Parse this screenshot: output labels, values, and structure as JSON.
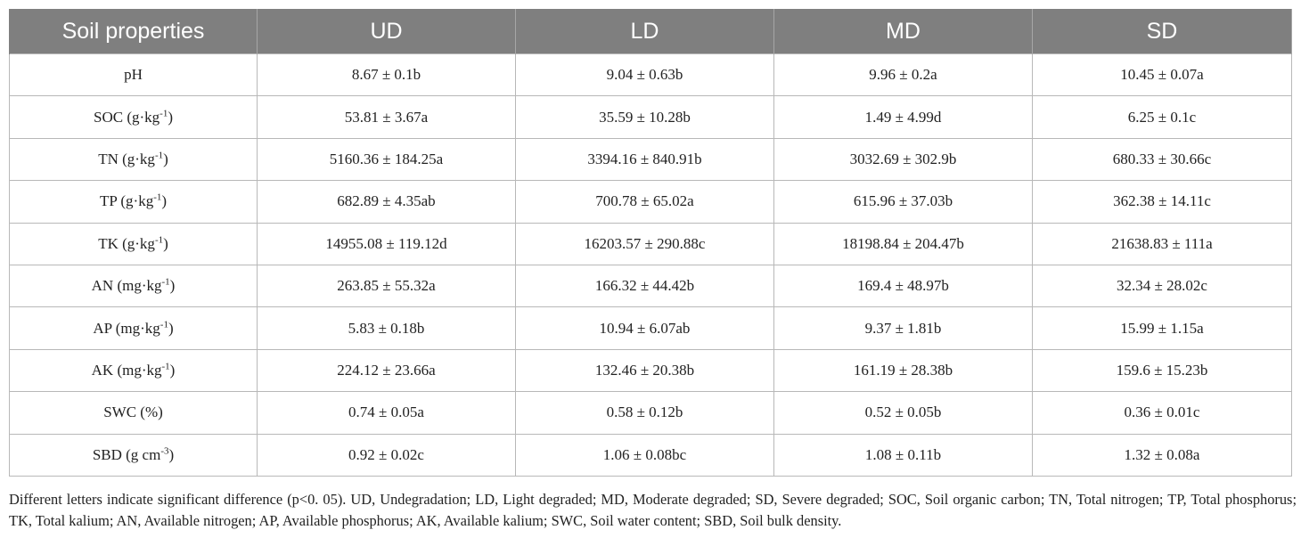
{
  "table": {
    "headers": [
      "Soil properties",
      "UD",
      "LD",
      "MD",
      "SD"
    ],
    "rows": [
      {
        "property": "pH",
        "unit_sup": "",
        "unit_close": "",
        "values": [
          "8.67 ± 0.1b",
          "9.04 ± 0.63b",
          "9.96 ± 0.2a",
          "10.45 ± 0.07a"
        ]
      },
      {
        "property": "SOC (g·kg",
        "unit_sup": "-1",
        "unit_close": ")",
        "values": [
          "53.81 ± 3.67a",
          "35.59 ± 10.28b",
          "1.49 ± 4.99d",
          "6.25 ± 0.1c"
        ]
      },
      {
        "property": "TN (g·kg",
        "unit_sup": "-1",
        "unit_close": ")",
        "values": [
          "5160.36 ± 184.25a",
          "3394.16 ± 840.91b",
          "3032.69 ± 302.9b",
          "680.33 ± 30.66c"
        ]
      },
      {
        "property": "TP (g·kg",
        "unit_sup": "-1",
        "unit_close": ")",
        "values": [
          "682.89 ± 4.35ab",
          "700.78 ± 65.02a",
          "615.96 ± 37.03b",
          "362.38 ± 14.11c"
        ]
      },
      {
        "property": "TK (g·kg",
        "unit_sup": "-1",
        "unit_close": ")",
        "values": [
          "14955.08 ± 119.12d",
          "16203.57 ± 290.88c",
          "18198.84 ± 204.47b",
          "21638.83 ± 111a"
        ]
      },
      {
        "property": "AN (mg·kg",
        "unit_sup": "-1",
        "unit_close": ")",
        "values": [
          "263.85 ± 55.32a",
          "166.32 ± 44.42b",
          "169.4 ± 48.97b",
          "32.34 ± 28.02c"
        ]
      },
      {
        "property": "AP (mg·kg",
        "unit_sup": "-1",
        "unit_close": ")",
        "values": [
          "5.83 ± 0.18b",
          "10.94 ± 6.07ab",
          "9.37 ± 1.81b",
          "15.99 ± 1.15a"
        ]
      },
      {
        "property": "AK (mg·kg",
        "unit_sup": "-1",
        "unit_close": ")",
        "values": [
          "224.12 ± 23.66a",
          "132.46 ± 20.38b",
          "161.19 ± 28.38b",
          "159.6 ± 15.23b"
        ]
      },
      {
        "property": "SWC (%)",
        "unit_sup": "",
        "unit_close": "",
        "values": [
          "0.74 ± 0.05a",
          "0.58 ± 0.12b",
          "0.52 ± 0.05b",
          "0.36 ± 0.01c"
        ]
      },
      {
        "property": "SBD (g cm",
        "unit_sup": "-3",
        "unit_close": ")",
        "values": [
          "0.92 ± 0.02c",
          "1.06 ± 0.08bc",
          "1.08 ± 0.11b",
          "1.32 ± 0.08a"
        ]
      }
    ]
  },
  "footnote": "Different letters indicate significant difference (p<0. 05). UD, Undegradation; LD, Light degraded; MD, Moderate degraded; SD, Severe degraded; SOC, Soil organic carbon; TN, Total nitrogen; TP, Total phosphorus; TK, Total kalium; AN, Available nitrogen; AP, Available phosphorus; AK, Available kalium; SWC, Soil water content; SBD, Soil bulk density.",
  "colors": {
    "header_background": "#7f7f7f",
    "header_text": "#ffffff",
    "grid_lines": "#b8b8b8",
    "body_text": "#222222"
  }
}
